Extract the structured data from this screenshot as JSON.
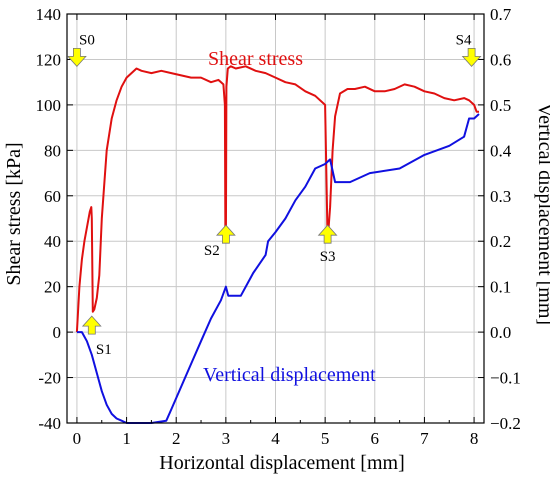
{
  "chart_data": {
    "type": "line",
    "title": "",
    "xlabel": "Horizontal displacement [mm]",
    "ylabel_left": "Shear stress [kPa]",
    "ylabel_right": "Vertical displacement [mm]",
    "xlim": [
      -0.2,
      8.2
    ],
    "ylim_left": [
      -40,
      140
    ],
    "ylim_right": [
      -0.2,
      0.7
    ],
    "x_ticks": [
      0,
      1,
      2,
      3,
      4,
      5,
      6,
      7,
      8
    ],
    "y_left_ticks": [
      -40,
      -20,
      0,
      20,
      40,
      60,
      80,
      100,
      120,
      140
    ],
    "y_right_ticks": [
      "−0.2",
      "−0.1",
      "0.0",
      "0.1",
      "0.2",
      "0.3",
      "0.4",
      "0.5",
      "0.6",
      "0.7"
    ],
    "y_right_tick_values": [
      -0.2,
      -0.1,
      0.0,
      0.1,
      0.2,
      0.3,
      0.4,
      0.5,
      0.6,
      0.7
    ],
    "grid": true,
    "series": [
      {
        "name": "Shear stress",
        "axis": "left",
        "color": "#e01010",
        "x": [
          0.0,
          0.02,
          0.05,
          0.1,
          0.15,
          0.2,
          0.26,
          0.29,
          0.3,
          0.32,
          0.35,
          0.4,
          0.45,
          0.5,
          0.6,
          0.7,
          0.8,
          0.9,
          1.0,
          1.1,
          1.2,
          1.3,
          1.5,
          1.7,
          1.9,
          2.1,
          2.3,
          2.5,
          2.7,
          2.85,
          2.95,
          2.98,
          2.99,
          3.0,
          3.01,
          3.04,
          3.1,
          3.2,
          3.4,
          3.6,
          3.8,
          4.0,
          4.2,
          4.4,
          4.6,
          4.8,
          5.0,
          5.05,
          5.1,
          5.15,
          5.2,
          5.3,
          5.45,
          5.6,
          5.8,
          6.0,
          6.2,
          6.4,
          6.6,
          6.8,
          7.0,
          7.2,
          7.4,
          7.6,
          7.8,
          7.9,
          8.0,
          8.05,
          8.1
        ],
        "y": [
          0,
          8,
          20,
          32,
          40,
          46,
          53,
          55,
          50,
          9,
          10,
          15,
          25,
          50,
          80,
          94,
          102,
          108,
          112,
          114,
          116,
          115,
          114,
          115,
          114,
          113,
          112,
          112,
          110,
          111,
          109,
          100,
          40,
          40,
          108,
          116,
          117,
          116,
          117,
          115,
          114,
          112,
          110,
          109,
          106,
          104,
          100,
          40,
          55,
          80,
          95,
          105,
          107,
          107,
          108,
          106,
          106,
          107,
          109,
          108,
          106,
          105,
          103,
          102,
          103,
          102,
          100,
          97,
          97
        ]
      },
      {
        "name": "Vertical displacement",
        "axis": "right",
        "color": "#1010e0",
        "x": [
          0.0,
          0.1,
          0.2,
          0.3,
          0.4,
          0.5,
          0.6,
          0.7,
          0.8,
          0.9,
          1.0,
          1.2,
          1.5,
          1.8,
          1.9,
          2.1,
          2.3,
          2.5,
          2.7,
          2.9,
          3.0,
          3.05,
          3.3,
          3.5,
          3.55,
          3.8,
          3.85,
          4.0,
          4.2,
          4.4,
          4.6,
          4.8,
          5.0,
          5.1,
          5.2,
          5.5,
          5.9,
          6.5,
          7.0,
          7.5,
          7.8,
          7.9,
          8.0,
          8.1
        ],
        "y": [
          0.0,
          0.0,
          -0.02,
          -0.05,
          -0.09,
          -0.13,
          -0.16,
          -0.18,
          -0.19,
          -0.195,
          -0.2,
          -0.2,
          -0.2,
          -0.195,
          -0.17,
          -0.12,
          -0.07,
          -0.02,
          0.03,
          0.07,
          0.1,
          0.08,
          0.08,
          0.12,
          0.13,
          0.17,
          0.2,
          0.22,
          0.25,
          0.29,
          0.32,
          0.36,
          0.37,
          0.38,
          0.33,
          0.33,
          0.35,
          0.36,
          0.39,
          0.41,
          0.43,
          0.47,
          0.47,
          0.48
        ]
      }
    ],
    "annotations": {
      "series_labels": [
        {
          "text": "Shear stress",
          "color": "#e01010"
        },
        {
          "text": "Vertical displacement",
          "color": "#1010e0"
        }
      ],
      "stages": [
        {
          "label": "S0",
          "x": 0.0,
          "y": 0.6,
          "axis": "right",
          "direction": "down"
        },
        {
          "label": "S1",
          "x": 0.3,
          "y": 0.0,
          "axis": "right",
          "direction": "up"
        },
        {
          "label": "S2",
          "x": 3.0,
          "y": 0.2,
          "axis": "right",
          "direction": "up"
        },
        {
          "label": "S3",
          "x": 5.05,
          "y": 0.2,
          "axis": "right",
          "direction": "up"
        },
        {
          "label": "S4",
          "x": 7.95,
          "y": 0.6,
          "axis": "right",
          "direction": "down"
        }
      ],
      "arrow_color": "#ffff00"
    }
  }
}
